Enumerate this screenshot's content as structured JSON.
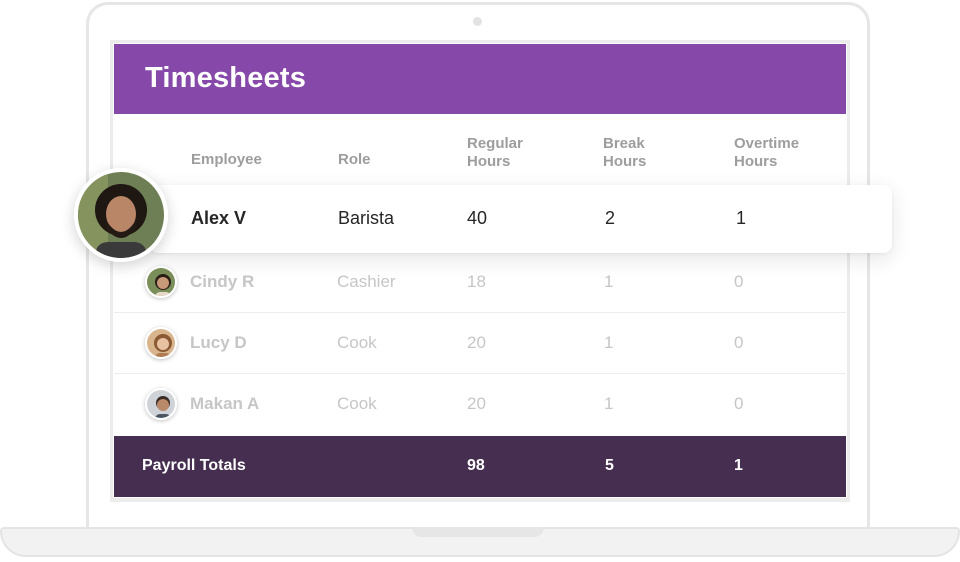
{
  "header": {
    "title": "Timesheets"
  },
  "columns": {
    "employee": "Employee",
    "role": "Role",
    "regular": [
      "Regular",
      "Hours"
    ],
    "break": [
      "Break",
      "Hours"
    ],
    "overtime": [
      "Overtime",
      "Hours"
    ]
  },
  "highlighted": {
    "name": "Alex V",
    "role": "Barista",
    "regular": "40",
    "break": "2",
    "overtime": "1"
  },
  "rows": [
    {
      "name": "Cindy R",
      "role": "Cashier",
      "regular": "18",
      "break": "1",
      "overtime": "0"
    },
    {
      "name": "Lucy D",
      "role": "Cook",
      "regular": "20",
      "break": "1",
      "overtime": "0"
    },
    {
      "name": "Makan A",
      "role": "Cook",
      "regular": "20",
      "break": "1",
      "overtime": "0"
    }
  ],
  "totals": {
    "label": "Payroll Totals",
    "regular": "98",
    "break": "5",
    "overtime": "1"
  },
  "colors": {
    "header": "#8648a9",
    "totals": "#452e4f",
    "muted_text": "#c6c6c6"
  }
}
